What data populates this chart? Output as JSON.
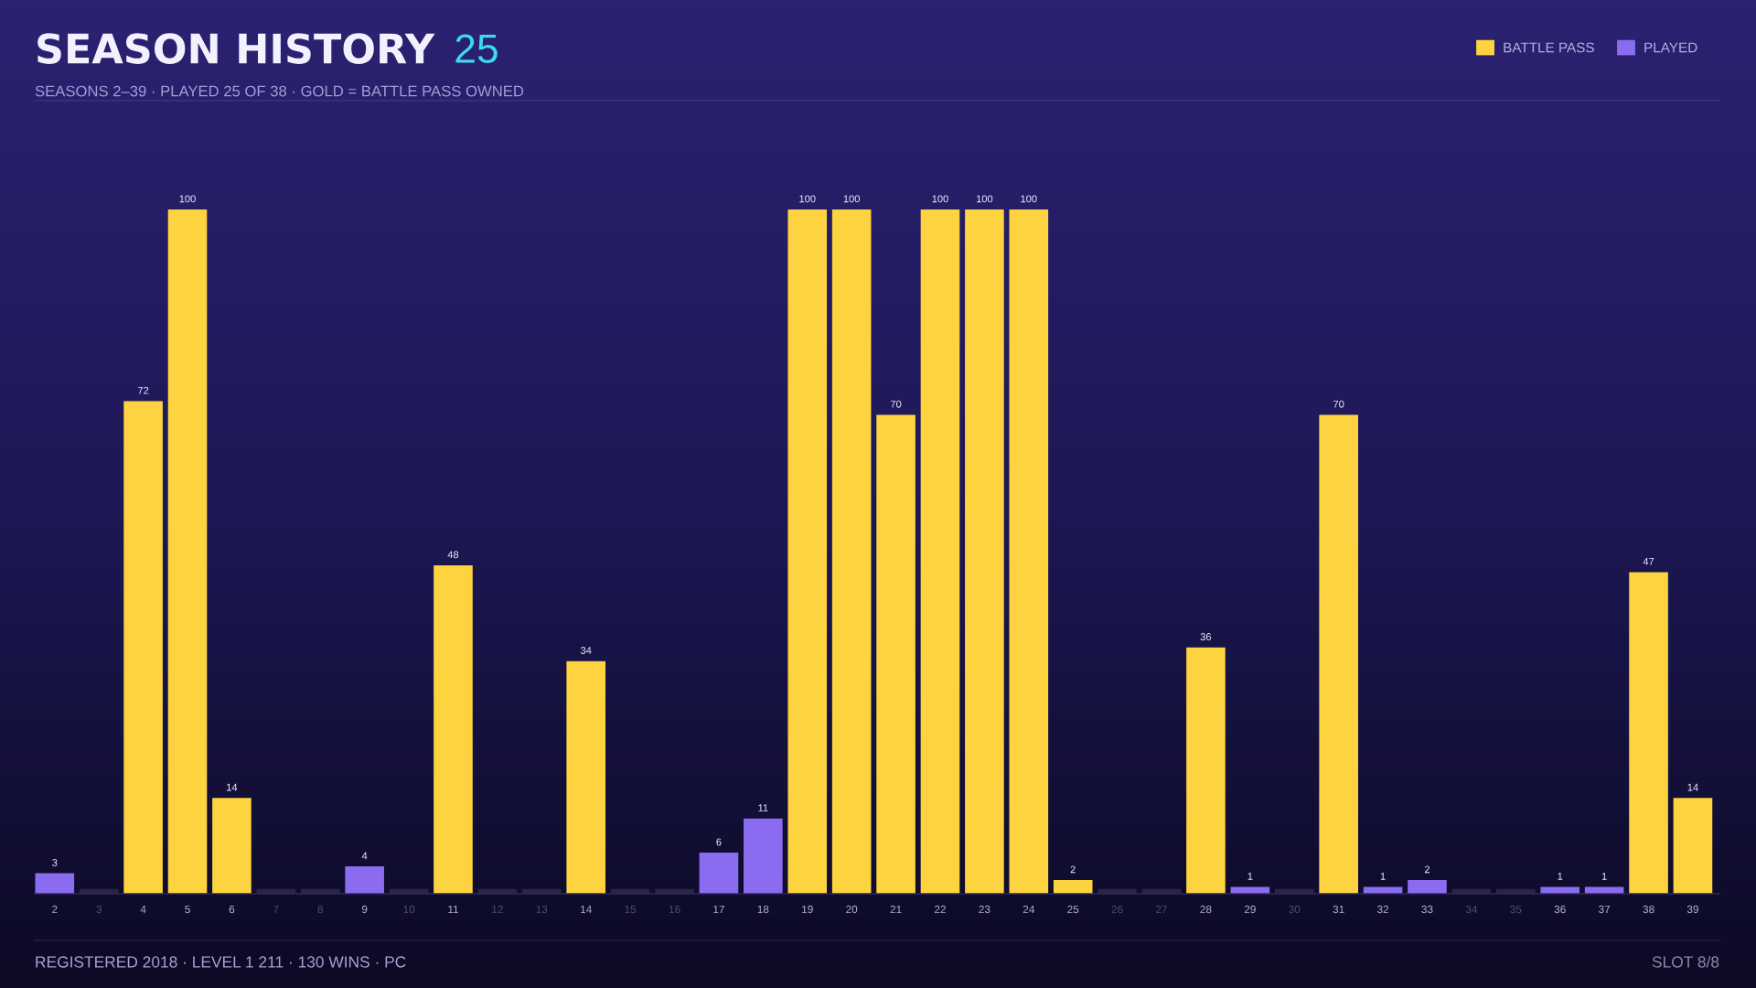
{
  "chart_data": {
    "type": "bar",
    "title": "SEASON HISTORY",
    "subtitle": "SEASONS 2–39 · PLAYED 25 OF 38 · GOLD = BATTLE PASS OWNED",
    "annotations": [
      "25",
      "REGISTERED 2018 · LEVEL 1 211 · 130 WINS · PC",
      "SLOT 8/8"
    ],
    "categories": [
      "2",
      "3",
      "4",
      "5",
      "6",
      "7",
      "8",
      "9",
      "10",
      "11",
      "12",
      "13",
      "14",
      "15",
      "16",
      "17",
      "18",
      "19",
      "20",
      "21",
      "22",
      "23",
      "24",
      "25",
      "26",
      "27",
      "28",
      "29",
      "30",
      "31",
      "32",
      "33",
      "34",
      "35",
      "36",
      "37",
      "38",
      "39"
    ],
    "stacked": true,
    "legend": "top right",
    "tick_labels": "x",
    "series": [
      {
        "name": "BATTLE PASS",
        "color": "#fdd440",
        "values": [
          null,
          null,
          72,
          100,
          14,
          null,
          null,
          null,
          null,
          48,
          null,
          null,
          34,
          null,
          null,
          null,
          null,
          100,
          100,
          70,
          100,
          100,
          100,
          2,
          null,
          null,
          36,
          null,
          null,
          70,
          null,
          null,
          null,
          null,
          null,
          null,
          47,
          14
        ],
        "value_labels": [
          null,
          null,
          "72",
          "100",
          "14",
          null,
          null,
          null,
          null,
          "48",
          null,
          null,
          "34",
          null,
          null,
          null,
          null,
          "100",
          "100",
          "70",
          "100",
          "100",
          "100",
          "2",
          null,
          null,
          "36",
          null,
          null,
          "70",
          null,
          null,
          null,
          null,
          null,
          null,
          "47",
          "14"
        ]
      },
      {
        "name": "PLAYED",
        "color": "#8b6cf0",
        "values": [
          3,
          null,
          null,
          null,
          null,
          null,
          null,
          4,
          null,
          null,
          null,
          null,
          null,
          null,
          null,
          6,
          11,
          null,
          null,
          null,
          null,
          null,
          null,
          null,
          null,
          null,
          null,
          1,
          null,
          null,
          1,
          2,
          null,
          null,
          1,
          1,
          null,
          null
        ],
        "value_labels": [
          "3",
          null,
          null,
          null,
          null,
          null,
          null,
          "4",
          null,
          null,
          null,
          null,
          null,
          null,
          null,
          "6",
          "11",
          null,
          null,
          null,
          null,
          null,
          null,
          null,
          null,
          null,
          null,
          "1",
          null,
          null,
          "1",
          "2",
          null,
          null,
          "1",
          "1",
          null,
          null
        ]
      },
      {
        "color": "#2b2545",
        "values": [
          null,
          0.7,
          null,
          null,
          null,
          0.7,
          0.7,
          null,
          0.7,
          null,
          0.7,
          0.7,
          null,
          0.7,
          0.7,
          null,
          null,
          null,
          null,
          null,
          null,
          null,
          null,
          null,
          0.7,
          0.7,
          null,
          null,
          0.7,
          null,
          null,
          null,
          0.7,
          0.7,
          null,
          null,
          null,
          null
        ]
      }
    ]
  }
}
